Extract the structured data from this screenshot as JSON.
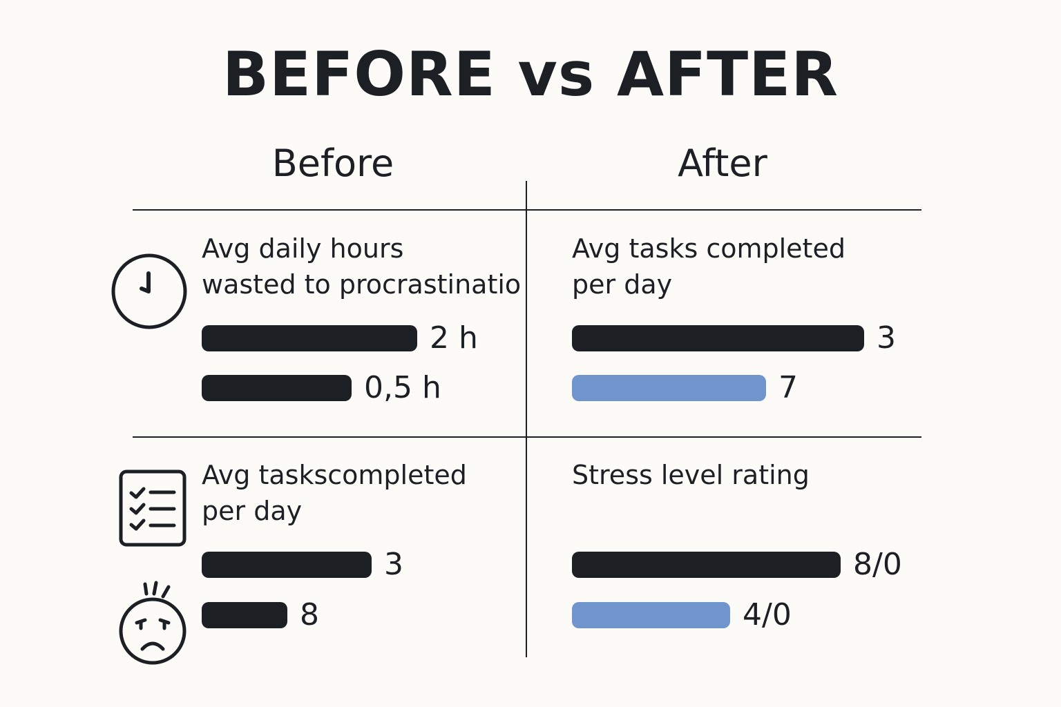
{
  "title": "BEFORE vs AFTER",
  "columns": {
    "before": "Before",
    "after": "After"
  },
  "colors": {
    "dark": "#1c1f24",
    "blue": "#7094cc",
    "background": "#fcfbf7"
  },
  "icons": {
    "top_left": "clock-icon",
    "bottom_left_1": "checklist-icon",
    "bottom_left_2": "stressed-face-icon"
  },
  "chart_data": [
    {
      "type": "bar",
      "panel": "top-left",
      "title": "Avg daily hours\nwasted to procrastinatio",
      "bars": [
        {
          "label": "2 h",
          "value": 2,
          "color": "dark"
        },
        {
          "label": "0,5 h",
          "value": 0.5,
          "color": "dark"
        }
      ]
    },
    {
      "type": "bar",
      "panel": "top-right",
      "title": "Avg tasks completed\nper day",
      "bars": [
        {
          "label": "3",
          "value": 3,
          "color": "dark"
        },
        {
          "label": "7",
          "value": 7,
          "color": "blue"
        }
      ]
    },
    {
      "type": "bar",
      "panel": "bottom-left",
      "title": "Avg taskscompleted\nper day",
      "bars": [
        {
          "label": "3",
          "value": 3,
          "color": "dark"
        },
        {
          "label": "8",
          "value": 8,
          "color": "dark"
        }
      ]
    },
    {
      "type": "bar",
      "panel": "bottom-right",
      "title": "Stress level rating",
      "bars": [
        {
          "label": "8/0",
          "value": 8,
          "color": "dark"
        },
        {
          "label": "4/0",
          "value": 4,
          "color": "blue"
        }
      ]
    }
  ]
}
